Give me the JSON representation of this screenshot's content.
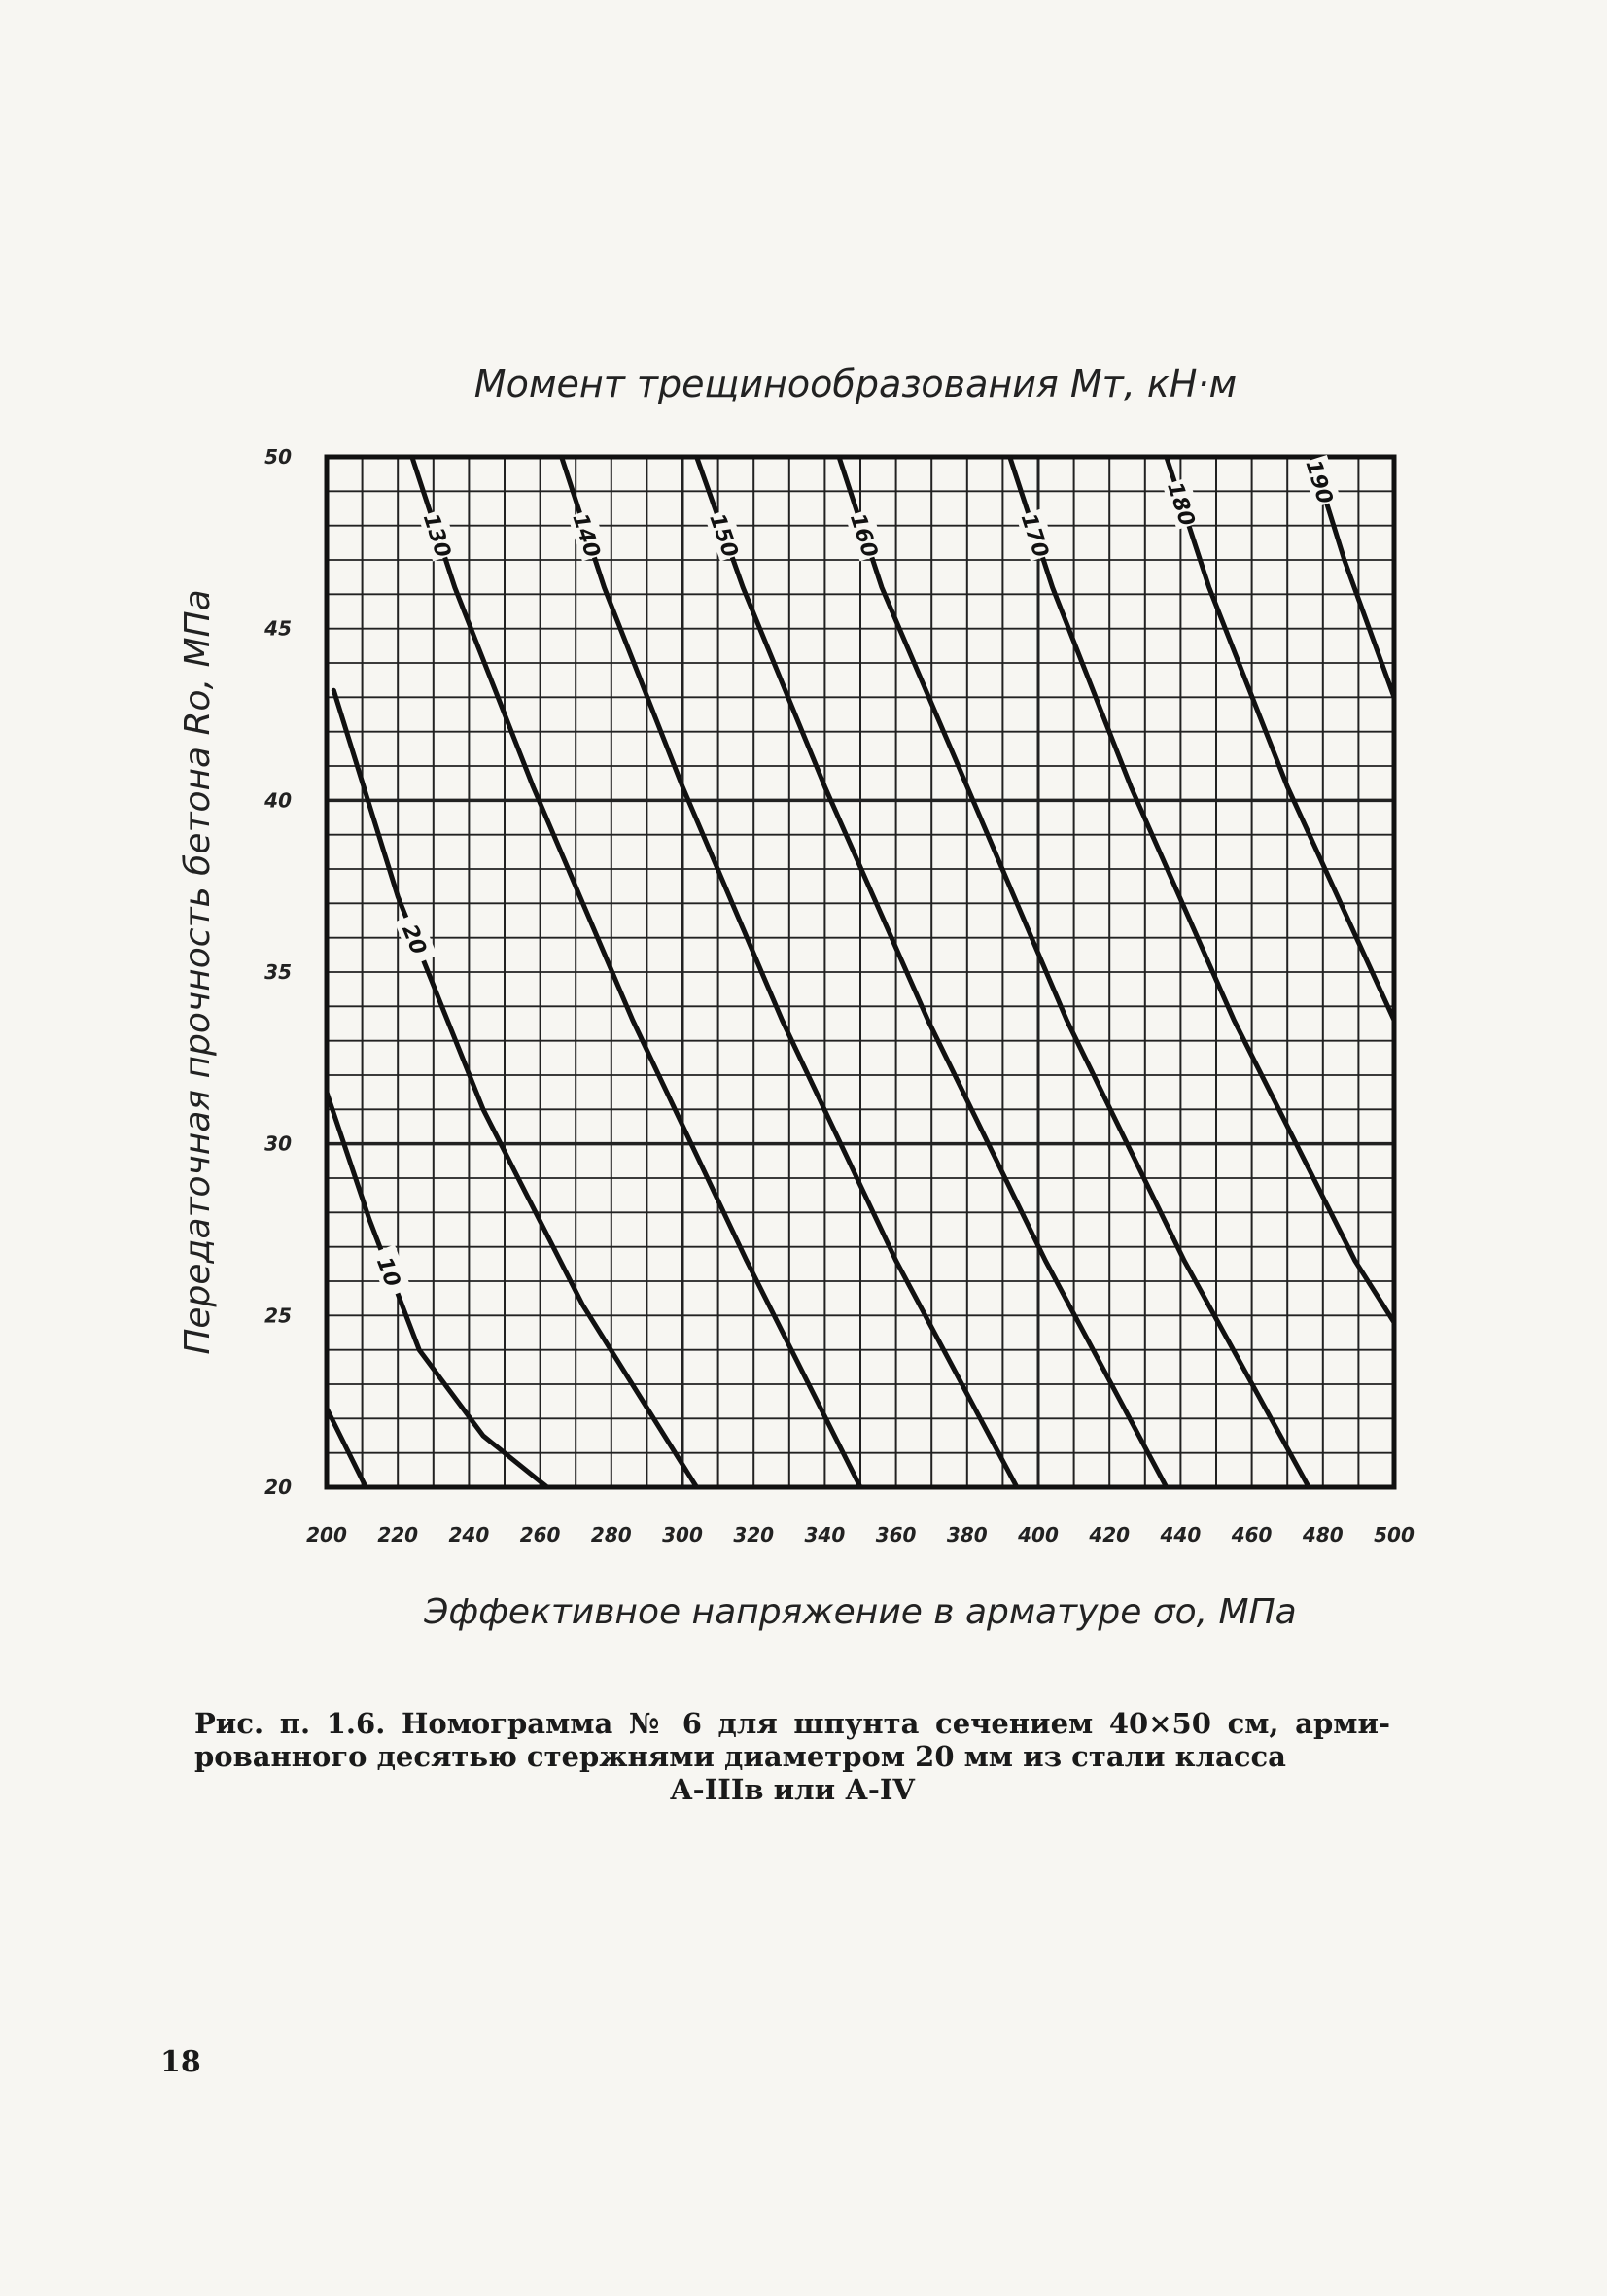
{
  "chart_data": {
    "type": "line",
    "title": "Момент трещинообразования  Mт, кН·м",
    "xlabel": "Эффективное  напряжение в арматуре  σо, МПа",
    "ylabel": "Передаточная  прочность  бетона  Rо, МПа",
    "xlim": [
      200,
      500
    ],
    "ylim": [
      20,
      50
    ],
    "x_ticks": [
      "200",
      "220",
      "240",
      "260",
      "280",
      "300",
      "320",
      "340",
      "360",
      "380",
      "400",
      "420",
      "440",
      "460",
      "480",
      "500"
    ],
    "y_ticks": [
      "20",
      "25",
      "30",
      "35",
      "40",
      "45",
      "50"
    ],
    "grid": true,
    "series": [
      {
        "name": "10",
        "x": [
          200,
          212,
          226,
          244,
          262
        ],
        "y": [
          31.5,
          27.8,
          24.0,
          21.5,
          20.0
        ]
      },
      {
        "name": "20",
        "x": [
          202,
          220,
          244,
          272,
          304
        ],
        "y": [
          43.2,
          37.2,
          31.0,
          25.3,
          20.0
        ]
      },
      {
        "name": "130",
        "x": [
          224,
          236,
          258,
          286,
          318,
          350
        ],
        "y": [
          50.0,
          46.2,
          40.4,
          33.6,
          26.6,
          20.0
        ]
      },
      {
        "name": "140",
        "x": [
          266,
          278,
          300,
          328,
          360,
          394
        ],
        "y": [
          50.0,
          46.2,
          40.4,
          33.6,
          26.6,
          20.0
        ]
      },
      {
        "name": "150",
        "x": [
          304,
          317,
          340,
          369,
          402,
          436
        ],
        "y": [
          50.0,
          46.2,
          40.4,
          33.6,
          26.6,
          20.0
        ]
      },
      {
        "name": "160",
        "x": [
          344,
          356,
          380,
          408,
          441,
          476
        ],
        "y": [
          50.0,
          46.2,
          40.4,
          33.6,
          26.6,
          20.0
        ]
      },
      {
        "name": "170",
        "x": [
          392,
          404,
          426,
          455,
          489,
          500
        ],
        "y": [
          50.0,
          46.2,
          40.4,
          33.6,
          26.6,
          24.8
        ]
      },
      {
        "name": "180",
        "x": [
          436,
          448,
          470,
          500
        ],
        "y": [
          50.0,
          46.2,
          40.4,
          33.6
        ]
      },
      {
        "name": "190",
        "x": [
          477,
          486,
          500
        ],
        "y": [
          50.0,
          47.0,
          43.0
        ]
      },
      {
        "name": "",
        "x": [
          200,
          211
        ],
        "y": [
          22.3,
          20.0
        ]
      }
    ]
  },
  "caption": {
    "line1": "Рис. п. 1.6. Номограмма № 6 для шпунта сечением 40×50 см, арми-",
    "line2": "рованного десятью стержнями диаметром 20 мм из стали класса",
    "line3": "А-IIIв или А-IV"
  },
  "page_number": "18"
}
